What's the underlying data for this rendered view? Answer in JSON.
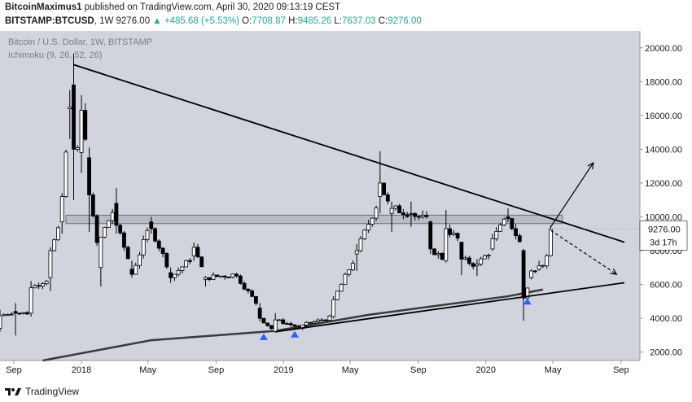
{
  "header": {
    "author": "BitcoinMaximus1",
    "published_text": "published on TradingView.com, April 30, 2020 09:13:19 CEST",
    "symbol": "BITSTAMP:BTCUSD",
    "interval": "1W",
    "last": "9276.00",
    "change": "▲ +485.68 (+5.53%)",
    "o_label": "O:",
    "o_value": "7708.87",
    "h_label": "H:",
    "h_value": "9485.26",
    "l_label": "L:",
    "l_value": "7637.03",
    "c_label": "C:",
    "c_value": "9276.00"
  },
  "legend": {
    "title": "Bitcoin / U.S. Dollar, 1W, BITSTAMP",
    "indicator": "Ichimoku (9, 26, 52, 26)"
  },
  "price_label": {
    "value": "9276.00",
    "countdown": "3d 17h"
  },
  "footer": {
    "brand": "TradingView"
  },
  "colors": {
    "plot_bg": "#d1d4dc",
    "up": "#ffffff",
    "down": "#000000",
    "marker": "#2962ff",
    "zone": "#b2b5be"
  },
  "chart_data": {
    "type": "candlestick",
    "y_axis": {
      "ticks": [
        "2000.00",
        "4000.00",
        "6000.00",
        "8000.00",
        "10000.00",
        "12000.00",
        "14000.00",
        "16000.00",
        "18000.00",
        "20000.00"
      ],
      "range": [
        1500,
        21000
      ],
      "position": "right"
    },
    "x_axis": {
      "ticks": [
        "Sep",
        "2018",
        "May",
        "Sep",
        "2019",
        "May",
        "Sep",
        "2020",
        "May",
        "Sep"
      ],
      "start": "2017-08-07",
      "end": "2020-10-05"
    },
    "ohlc_anchors": [
      [
        "2017-08-07",
        3400,
        4500,
        3200,
        4150
      ],
      [
        "2017-09-04",
        4400,
        4900,
        2980,
        4300
      ],
      [
        "2017-10-02",
        4300,
        6200,
        4100,
        5800
      ],
      [
        "2017-11-06",
        6400,
        8200,
        5600,
        8000
      ],
      [
        "2017-11-27",
        9700,
        11400,
        9000,
        11200
      ],
      [
        "2017-12-11",
        16400,
        17500,
        14600,
        16500
      ],
      [
        "2017-12-18",
        17800,
        19666,
        11000,
        14000
      ],
      [
        "2018-01-01",
        13800,
        17200,
        12600,
        16300
      ],
      [
        "2018-01-15",
        13500,
        14100,
        9100,
        11300
      ],
      [
        "2018-02-05",
        7000,
        8800,
        5880,
        8800
      ],
      [
        "2018-03-05",
        10800,
        11700,
        9000,
        9500
      ],
      [
        "2018-04-02",
        6900,
        7400,
        6400,
        6600
      ],
      [
        "2018-05-07",
        9700,
        10000,
        9000,
        9300
      ],
      [
        "2018-06-11",
        6700,
        7000,
        6100,
        6400
      ],
      [
        "2018-07-23",
        7700,
        8480,
        7400,
        8200
      ],
      [
        "2018-08-13",
        6300,
        6500,
        5880,
        6400
      ],
      [
        "2018-10-08",
        6600,
        6700,
        6400,
        6500
      ],
      [
        "2018-11-19",
        4600,
        4900,
        3800,
        4000
      ],
      [
        "2018-12-17",
        3200,
        4300,
        3150,
        3900
      ],
      [
        "2019-02-04",
        3400,
        3600,
        3300,
        3600
      ],
      [
        "2019-04-01",
        4100,
        5300,
        4000,
        5100
      ],
      [
        "2019-05-13",
        7800,
        8400,
        6800,
        8000
      ],
      [
        "2019-06-24",
        11200,
        13880,
        10200,
        12000
      ],
      [
        "2019-07-15",
        10200,
        10900,
        9100,
        10500
      ],
      [
        "2019-08-19",
        10200,
        10900,
        9400,
        10200
      ],
      [
        "2019-09-23",
        9700,
        9800,
        7800,
        8100
      ],
      [
        "2019-10-21",
        7400,
        10400,
        7300,
        9300
      ],
      [
        "2019-11-18",
        8500,
        8500,
        6550,
        7500
      ],
      [
        "2019-12-16",
        7100,
        7500,
        6500,
        7200
      ],
      [
        "2020-01-13",
        8100,
        9000,
        8000,
        8700
      ],
      [
        "2020-02-10",
        10000,
        10500,
        9700,
        9900
      ],
      [
        "2020-03-09",
        8000,
        8100,
        3850,
        5200
      ],
      [
        "2020-03-23",
        6400,
        6900,
        6300,
        6800
      ],
      [
        "2020-04-06",
        6900,
        7400,
        6800,
        7100
      ],
      [
        "2020-04-20",
        7100,
        7800,
        6950,
        7700
      ],
      [
        "2020-04-27",
        7708.87,
        9485.26,
        7637.03,
        9276.0
      ]
    ],
    "lines": {
      "resistance": [
        [
          "2017-12-18",
          19000
        ],
        [
          "2020-09-07",
          8500
        ]
      ],
      "support": [
        [
          "2018-12-17",
          3200
        ],
        [
          "2020-09-07",
          6100
        ]
      ],
      "cloud_line": [
        [
          "2017-10-23",
          1500
        ],
        [
          "2018-05-07",
          2700
        ],
        [
          "2018-12-17",
          3250
        ],
        [
          "2019-06-03",
          4200
        ],
        [
          "2020-02-10",
          5300
        ],
        [
          "2020-04-13",
          5700
        ]
      ],
      "projection_up": [
        [
          "2020-04-27",
          9400
        ],
        [
          "2020-07-13",
          13200
        ]
      ],
      "projection_down": [
        [
          "2020-04-27",
          9200
        ],
        [
          "2020-08-24",
          6600
        ]
      ]
    },
    "zone": {
      "from": "2017-12-04",
      "to": "2020-05-18",
      "low": 9600,
      "high": 10100
    },
    "markers": [
      [
        "2018-11-26",
        2900
      ],
      [
        "2019-01-21",
        3050
      ],
      [
        "2020-03-16",
        5000
      ]
    ],
    "last_price": 9276.0
  }
}
